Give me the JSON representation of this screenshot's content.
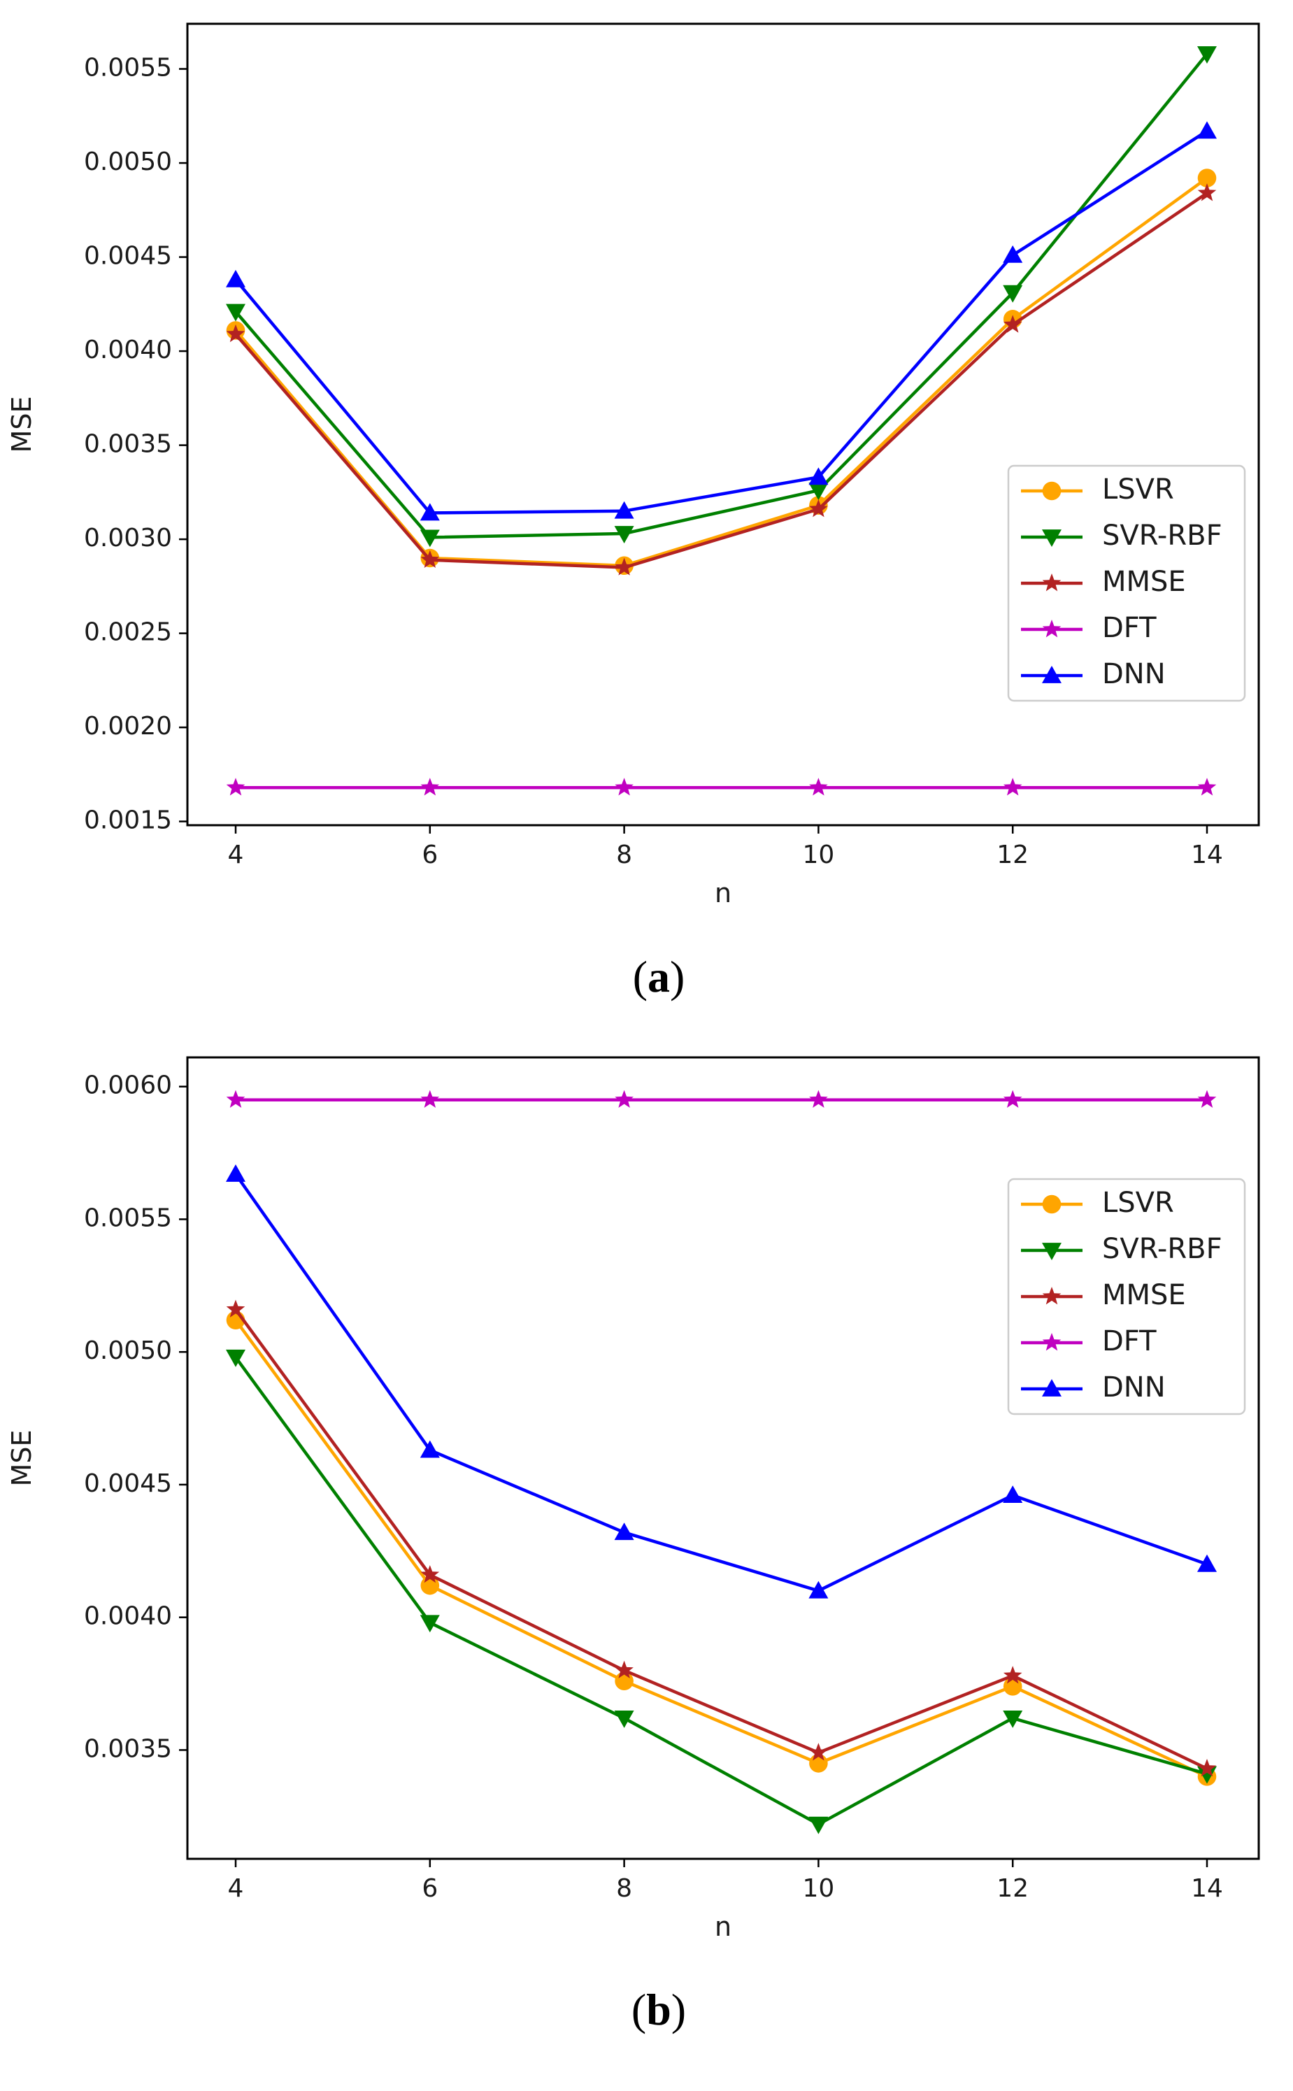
{
  "chart_data": [
    {
      "type": "line",
      "caption": "a",
      "xlabel": "n",
      "ylabel": "MSE",
      "x": [
        4,
        6,
        8,
        10,
        12,
        14
      ],
      "xticks": [
        "4",
        "6",
        "8",
        "10",
        "12",
        "14"
      ],
      "ylim": [
        0.00148,
        0.00574
      ],
      "yticks": [
        0.0015,
        0.002,
        0.0025,
        0.003,
        0.0035,
        0.004,
        0.0045,
        0.005,
        0.0055
      ],
      "ytick_labels": [
        "0.0015",
        "0.0020",
        "0.0025",
        "0.0030",
        "0.0035",
        "0.0040",
        "0.0045",
        "0.0050",
        "0.0055"
      ],
      "legend_position": "center-right",
      "series": [
        {
          "name": "LSVR",
          "color": "#ffa500",
          "marker": "circle",
          "values": [
            0.00411,
            0.0029,
            0.00286,
            0.00318,
            0.00417,
            0.00492
          ]
        },
        {
          "name": "SVR-RBF",
          "color": "#008000",
          "marker": "triangle-down",
          "values": [
            0.00421,
            0.00301,
            0.00303,
            0.00326,
            0.00431,
            0.00558
          ]
        },
        {
          "name": "MMSE",
          "color": "#b22222",
          "marker": "star",
          "values": [
            0.00409,
            0.00289,
            0.00285,
            0.00316,
            0.00414,
            0.00484
          ]
        },
        {
          "name": "DFT",
          "color": "#c000c0",
          "marker": "star",
          "values": [
            0.00168,
            0.00168,
            0.00168,
            0.00168,
            0.00168,
            0.00168
          ]
        },
        {
          "name": "DNN",
          "color": "#0000ff",
          "marker": "triangle-up",
          "values": [
            0.00438,
            0.00314,
            0.00315,
            0.00333,
            0.00451,
            0.00517
          ]
        }
      ]
    },
    {
      "type": "line",
      "caption": "b",
      "xlabel": "n",
      "ylabel": "MSE",
      "x": [
        4,
        6,
        8,
        10,
        12,
        14
      ],
      "xticks": [
        "4",
        "6",
        "8",
        "10",
        "12",
        "14"
      ],
      "ylim": [
        0.00309,
        0.00611
      ],
      "yticks": [
        0.0035,
        0.004,
        0.0045,
        0.005,
        0.0055,
        0.006
      ],
      "ytick_labels": [
        "0.0035",
        "0.0040",
        "0.0045",
        "0.0050",
        "0.0055",
        "0.0060"
      ],
      "legend_position": "upper-right",
      "series": [
        {
          "name": "LSVR",
          "color": "#ffa500",
          "marker": "circle",
          "values": [
            0.00512,
            0.00412,
            0.00376,
            0.00345,
            0.00374,
            0.0034
          ]
        },
        {
          "name": "SVR-RBF",
          "color": "#008000",
          "marker": "triangle-down",
          "values": [
            0.00498,
            0.00398,
            0.00362,
            0.00322,
            0.00362,
            0.00341
          ]
        },
        {
          "name": "MMSE",
          "color": "#b22222",
          "marker": "star",
          "values": [
            0.00516,
            0.00416,
            0.0038,
            0.00349,
            0.00378,
            0.00343
          ]
        },
        {
          "name": "DFT",
          "color": "#c000c0",
          "marker": "star",
          "values": [
            0.00595,
            0.00595,
            0.00595,
            0.00595,
            0.00595,
            0.00595
          ]
        },
        {
          "name": "DNN",
          "color": "#0000ff",
          "marker": "triangle-up",
          "values": [
            0.00567,
            0.00463,
            0.00432,
            0.0041,
            0.00446,
            0.0042
          ]
        }
      ]
    }
  ]
}
